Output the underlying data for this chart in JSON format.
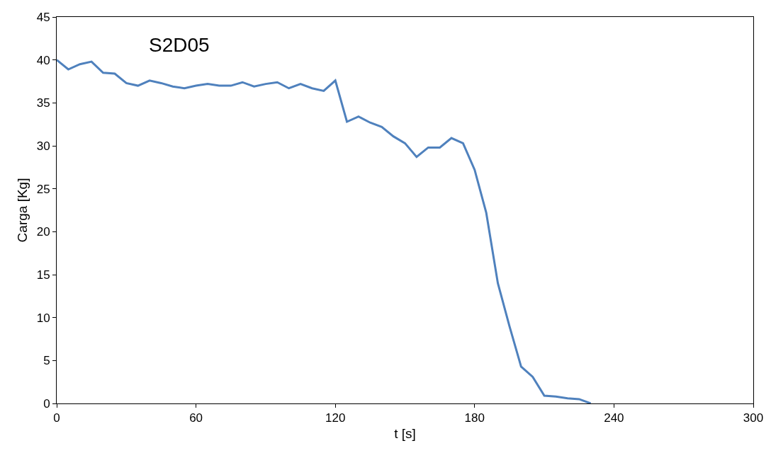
{
  "chart_data": {
    "type": "line",
    "title": "S2D05",
    "xlabel": "t [s]",
    "ylabel": "Carga [Kg]",
    "x": [
      0,
      5,
      10,
      15,
      20,
      25,
      30,
      35,
      40,
      45,
      50,
      55,
      60,
      65,
      70,
      75,
      80,
      85,
      90,
      95,
      100,
      105,
      110,
      115,
      120,
      125,
      130,
      135,
      140,
      145,
      150,
      155,
      160,
      165,
      170,
      175,
      180,
      185,
      190,
      195,
      200,
      205,
      210,
      215,
      220,
      225,
      230
    ],
    "series": [
      {
        "color": "#4f81bd",
        "values": [
          40,
          38.9,
          39.5,
          39.8,
          38.5,
          38.4,
          37.3,
          37.0,
          37.6,
          37.3,
          36.9,
          36.7,
          37.0,
          37.2,
          37.0,
          37.0,
          37.4,
          36.9,
          37.2,
          37.4,
          36.7,
          37.2,
          36.7,
          36.4,
          37.6,
          32.8,
          33.4,
          32.7,
          32.2,
          31.1,
          30.3,
          28.7,
          29.8,
          29.8,
          30.9,
          30.3,
          27.2,
          22.2,
          14.0,
          9.0,
          4.3,
          3.1,
          0.9,
          0.8,
          0.6,
          0.5,
          0
        ]
      }
    ],
    "xlim": [
      0,
      300
    ],
    "xticks": [
      0,
      60,
      120,
      180,
      240,
      300
    ],
    "ylim": [
      0,
      45
    ],
    "yticks": [
      0,
      5,
      10,
      15,
      20,
      25,
      30,
      35,
      40,
      45
    ],
    "legend": false,
    "marker": "none",
    "line_style": "solid"
  }
}
